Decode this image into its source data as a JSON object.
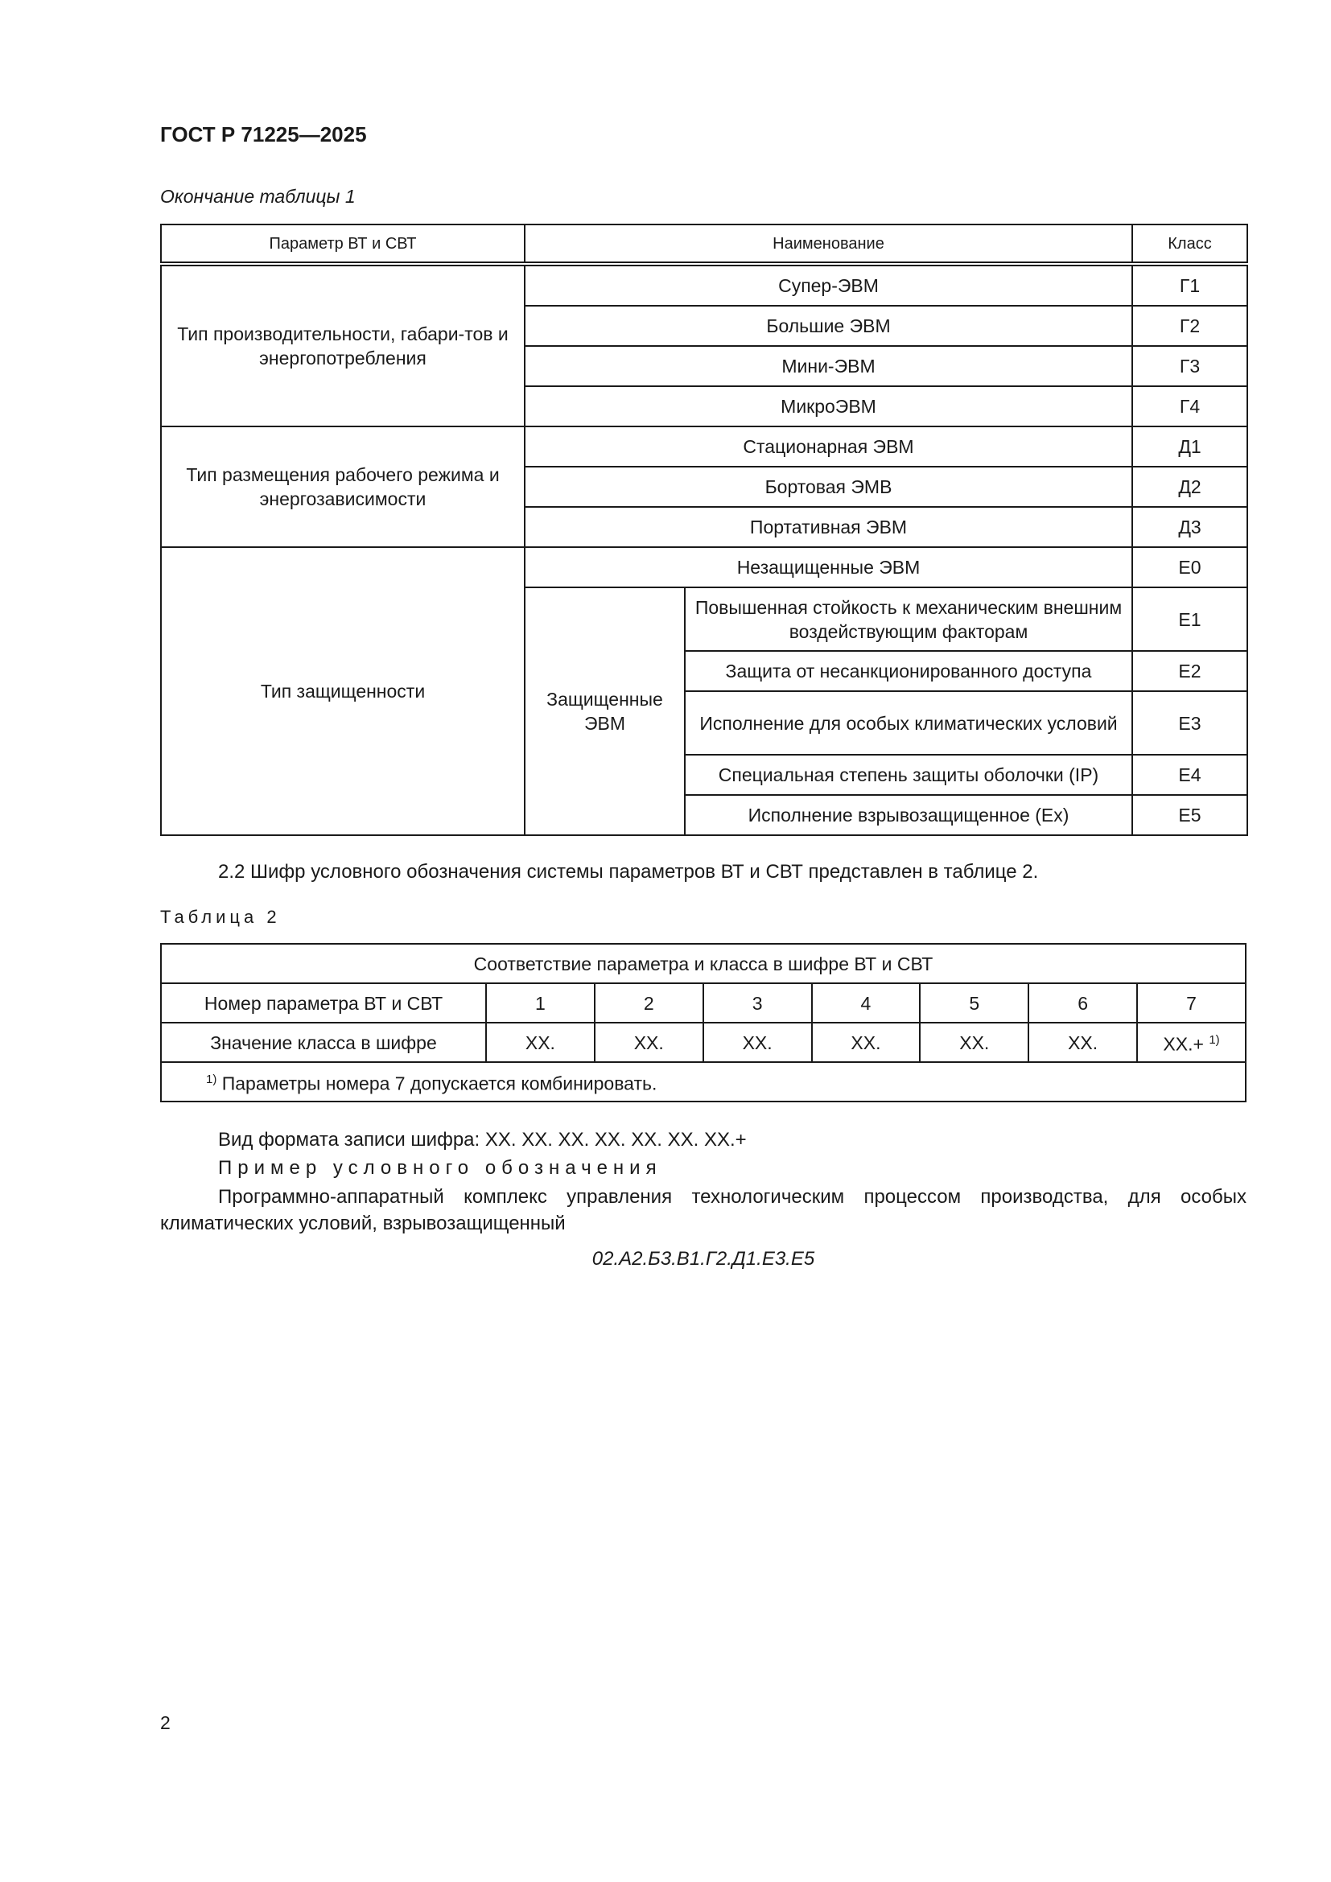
{
  "header": {
    "doc_code": "ГОСТ Р 71225—2025"
  },
  "table1": {
    "caption": "Окончание таблицы 1",
    "headers": [
      "Параметр ВТ и СВТ",
      "Наименование",
      "Класс"
    ],
    "groups": [
      {
        "param": "Тип производительности, габари-тов и энергопотребления",
        "rows": [
          {
            "name": "Супер-ЭВМ",
            "class": "Г1"
          },
          {
            "name": "Большие ЭВМ",
            "class": "Г2"
          },
          {
            "name": "Мини-ЭВМ",
            "class": "Г3"
          },
          {
            "name": "МикроЭВМ",
            "class": "Г4"
          }
        ]
      },
      {
        "param": "Тип размещения рабочего режима и энергозависимости",
        "rows": [
          {
            "name": "Стационарная ЭВМ",
            "class": "Д1"
          },
          {
            "name": "Бортовая ЭМВ",
            "class": "Д2"
          },
          {
            "name": "Портативная ЭВМ",
            "class": "Д3"
          }
        ]
      },
      {
        "param": "Тип защищенности",
        "unprotected": {
          "name": "Незащищенные ЭВМ",
          "class": "Е0"
        },
        "subgroup": "Защищенные ЭВМ",
        "rows": [
          {
            "name": "Повышенная стойкость к механическим внешним воздействующим факторам",
            "class": "Е1"
          },
          {
            "name": "Защита от несанкционированного доступа",
            "class": "Е2"
          },
          {
            "name": "Исполнение для особых климатических условий",
            "class": "Е3"
          },
          {
            "name": "Специальная степень защиты оболочки (IP)",
            "class": "Е4"
          },
          {
            "name": "Исполнение взрывозащищенное (Ех)",
            "class": "Е5"
          }
        ]
      }
    ]
  },
  "para_2_2": "2.2 Шифр условного обозначения системы параметров ВТ и СВТ представлен в таблице 2.",
  "table2": {
    "caption": "Таблица 2",
    "title": "Соответствие параметра и класса в шифре ВТ и СВТ",
    "row1_label": "Номер параметра ВТ и СВТ",
    "numbers": [
      "1",
      "2",
      "3",
      "4",
      "5",
      "6",
      "7"
    ],
    "row2_label": "Значение класса в шифре",
    "values": [
      "ХХ.",
      "ХХ.",
      "ХХ.",
      "ХХ.",
      "ХХ.",
      "ХХ.",
      "ХХ.+"
    ],
    "footnote_mark": "1)",
    "footnote": "Параметры номера 7 допускается комбинировать."
  },
  "format_line": "Вид формата записи шифра: ХХ. ХХ. ХХ. ХХ. ХХ. ХХ. ХХ.+",
  "example_heading": "Пример условного обозначения",
  "example_desc": "Программно-аппаратный комплекс управления технологическим процессом производства, для особых климатических условий, взрывозащищенный",
  "example_code": "02.А2.Б3.В1.Г2.Д1.Е3.Е5",
  "page_number": "2"
}
